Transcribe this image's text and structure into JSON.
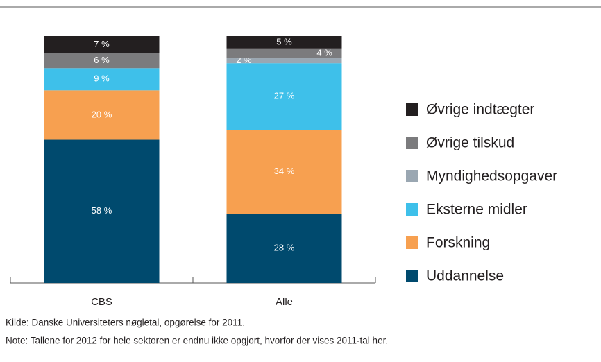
{
  "chart_data": {
    "type": "stacked_bar",
    "categories": [
      "CBS",
      "Alle"
    ],
    "ylim": [
      0,
      100
    ],
    "series": [
      {
        "name": "Uddannelse",
        "color": "#004a6e",
        "values": [
          58,
          28
        ],
        "value_labels": [
          "58 %",
          "28 %"
        ]
      },
      {
        "name": "Forskning",
        "color": "#f7a050",
        "values": [
          20,
          34
        ],
        "value_labels": [
          "20 %",
          "34 %"
        ]
      },
      {
        "name": "Eksterne midler",
        "color": "#3ec0ea",
        "values": [
          9,
          27
        ],
        "value_labels": [
          "9 %",
          "27 %"
        ]
      },
      {
        "name": "Myndighedsopgaver",
        "color": "#9aa7b2",
        "values": [
          0,
          2
        ],
        "value_labels": [
          null,
          "2 %"
        ]
      },
      {
        "name": "Øvrige tilskud",
        "color": "#7b7b7d",
        "values": [
          6,
          4
        ],
        "value_labels": [
          "6 %",
          "4 %"
        ]
      },
      {
        "name": "Øvrige indtægter",
        "color": "#231f20",
        "values": [
          7,
          5
        ],
        "value_labels": [
          "7 %",
          "5 %"
        ]
      }
    ],
    "source": "Kilde: Danske Universiteters nøgletal, opgørelse for 2011.",
    "note": "Note: Tallene for 2012 for hele sektoren er endnu ikke opgjort, hvorfor der vises 2011-tal her."
  }
}
